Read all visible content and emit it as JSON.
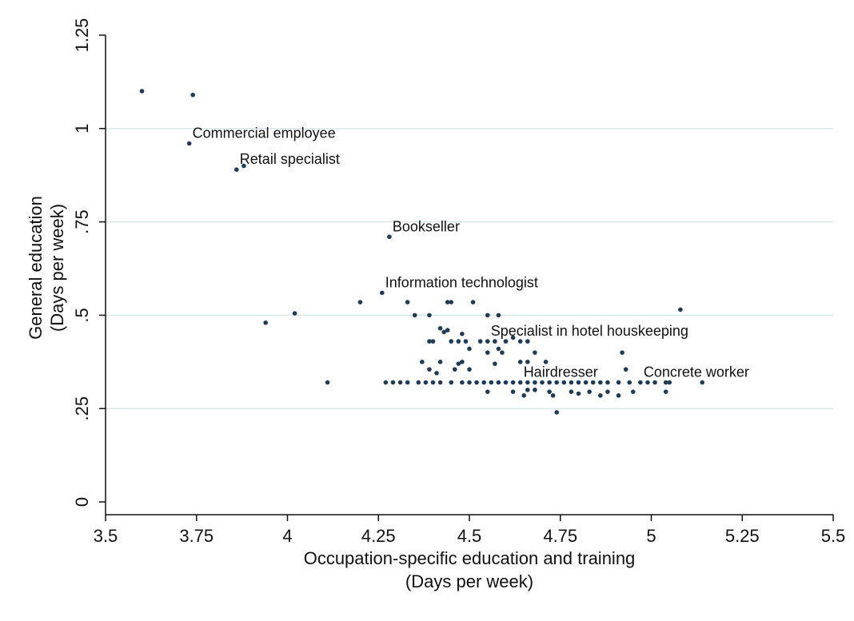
{
  "chart_data": {
    "type": "scatter",
    "title": "",
    "xlabel": [
      "Occupation-specific education and training",
      "(Days per week)"
    ],
    "ylabel": [
      "General education",
      "(Days per week)"
    ],
    "xlim": [
      3.5,
      5.5
    ],
    "ylim": [
      0,
      1.25
    ],
    "xticks": [
      3.5,
      3.75,
      4,
      4.25,
      4.5,
      4.75,
      5,
      5.25,
      5.5
    ],
    "xtick_labels": [
      "3.5",
      "3.75",
      "4",
      "4.25",
      "4.5",
      "4.75",
      "5",
      "5.25",
      "5.5"
    ],
    "yticks": [
      0,
      0.25,
      0.5,
      0.75,
      1,
      1.25
    ],
    "ytick_labels": [
      "0",
      ".25",
      ".5",
      ".75",
      "1",
      "1.25"
    ],
    "grid": "horizontal",
    "legend": "none",
    "marker_color": "#1f3c57",
    "grid_color": "#d8e6e6",
    "points": [
      [
        3.6,
        1.1
      ],
      [
        3.74,
        1.09
      ],
      [
        3.73,
        0.96
      ],
      [
        3.86,
        0.89
      ],
      [
        3.88,
        0.9
      ],
      [
        4.28,
        0.71
      ],
      [
        4.26,
        0.56
      ],
      [
        3.94,
        0.48
      ],
      [
        4.02,
        0.505
      ],
      [
        4.11,
        0.32
      ],
      [
        4.2,
        0.535
      ],
      [
        4.33,
        0.535
      ],
      [
        4.45,
        0.535
      ],
      [
        4.44,
        0.535
      ],
      [
        4.51,
        0.535
      ],
      [
        4.35,
        0.5
      ],
      [
        4.39,
        0.5
      ],
      [
        4.55,
        0.5
      ],
      [
        4.58,
        0.5
      ],
      [
        4.42,
        0.465
      ],
      [
        4.44,
        0.46
      ],
      [
        4.43,
        0.455
      ],
      [
        4.48,
        0.45
      ],
      [
        4.39,
        0.43
      ],
      [
        4.4,
        0.43
      ],
      [
        4.45,
        0.43
      ],
      [
        4.47,
        0.43
      ],
      [
        4.49,
        0.43
      ],
      [
        4.53,
        0.43
      ],
      [
        4.55,
        0.43
      ],
      [
        4.57,
        0.43
      ],
      [
        4.6,
        0.43
      ],
      [
        4.64,
        0.43
      ],
      [
        4.66,
        0.43
      ],
      [
        4.5,
        0.41
      ],
      [
        4.58,
        0.41
      ],
      [
        4.59,
        0.4
      ],
      [
        4.55,
        0.4
      ],
      [
        4.62,
        0.44
      ],
      [
        4.68,
        0.4
      ],
      [
        4.92,
        0.4
      ],
      [
        4.37,
        0.375
      ],
      [
        4.42,
        0.375
      ],
      [
        4.48,
        0.375
      ],
      [
        4.47,
        0.37
      ],
      [
        4.57,
        0.37
      ],
      [
        4.64,
        0.375
      ],
      [
        4.66,
        0.375
      ],
      [
        4.71,
        0.375
      ],
      [
        4.39,
        0.355
      ],
      [
        4.41,
        0.345
      ],
      [
        4.46,
        0.355
      ],
      [
        4.5,
        0.355
      ],
      [
        4.93,
        0.355
      ],
      [
        4.27,
        0.32
      ],
      [
        4.29,
        0.32
      ],
      [
        4.31,
        0.32
      ],
      [
        4.33,
        0.32
      ],
      [
        4.36,
        0.32
      ],
      [
        4.38,
        0.32
      ],
      [
        4.4,
        0.32
      ],
      [
        4.42,
        0.32
      ],
      [
        4.45,
        0.32
      ],
      [
        4.48,
        0.32
      ],
      [
        4.5,
        0.32
      ],
      [
        4.52,
        0.32
      ],
      [
        4.54,
        0.32
      ],
      [
        4.56,
        0.32
      ],
      [
        4.58,
        0.32
      ],
      [
        4.6,
        0.32
      ],
      [
        4.62,
        0.32
      ],
      [
        4.64,
        0.32
      ],
      [
        4.66,
        0.32
      ],
      [
        4.68,
        0.32
      ],
      [
        4.7,
        0.32
      ],
      [
        4.72,
        0.32
      ],
      [
        4.74,
        0.32
      ],
      [
        4.76,
        0.32
      ],
      [
        4.78,
        0.32
      ],
      [
        4.8,
        0.32
      ],
      [
        4.82,
        0.32
      ],
      [
        4.84,
        0.32
      ],
      [
        4.86,
        0.32
      ],
      [
        4.88,
        0.32
      ],
      [
        4.91,
        0.32
      ],
      [
        4.94,
        0.32
      ],
      [
        4.97,
        0.32
      ],
      [
        4.99,
        0.32
      ],
      [
        5.01,
        0.32
      ],
      [
        5.04,
        0.32
      ],
      [
        5.05,
        0.32
      ],
      [
        5.14,
        0.32
      ],
      [
        4.55,
        0.295
      ],
      [
        4.62,
        0.295
      ],
      [
        4.66,
        0.3
      ],
      [
        4.68,
        0.3
      ],
      [
        4.72,
        0.295
      ],
      [
        4.78,
        0.295
      ],
      [
        4.83,
        0.295
      ],
      [
        4.88,
        0.295
      ],
      [
        4.95,
        0.295
      ],
      [
        5.04,
        0.295
      ],
      [
        4.65,
        0.285
      ],
      [
        4.73,
        0.285
      ],
      [
        4.8,
        0.29
      ],
      [
        4.86,
        0.285
      ],
      [
        4.91,
        0.285
      ],
      [
        4.74,
        0.24
      ],
      [
        5.08,
        0.515
      ]
    ],
    "annotations": [
      {
        "label": "Commercial employee",
        "x": 3.73,
        "y": 0.96
      },
      {
        "label": "Retail specialist",
        "x": 3.86,
        "y": 0.89
      },
      {
        "label": "Bookseller",
        "x": 4.28,
        "y": 0.71
      },
      {
        "label": "Information technologist",
        "x": 4.26,
        "y": 0.56
      },
      {
        "label": "Specialist in hotel houskeeping",
        "x": 4.55,
        "y": 0.43
      },
      {
        "label": "Hairdresser",
        "x": 4.64,
        "y": 0.32
      },
      {
        "label": "Concrete worker",
        "x": 4.97,
        "y": 0.32
      }
    ]
  }
}
